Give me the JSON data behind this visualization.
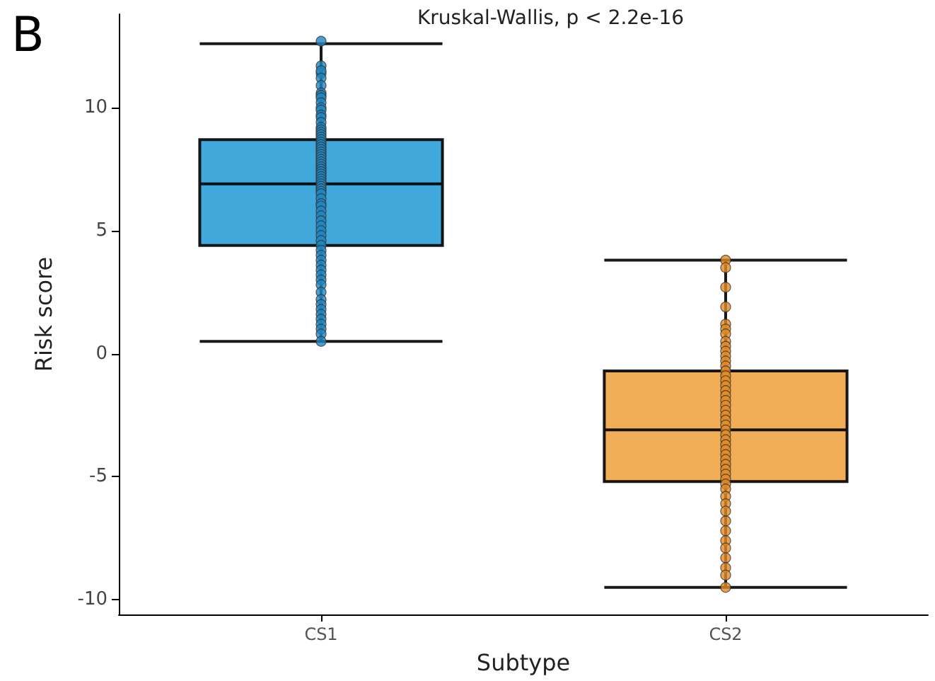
{
  "chart_data": {
    "type": "box",
    "xlabel": "Subtype",
    "ylabel": "Risk score",
    "annotations": [
      "B",
      "Kruskal-Wallis, p < 2.2e-16"
    ],
    "categories": [
      "CS1",
      "CS2"
    ],
    "ylim": [
      -10.6,
      13.8
    ],
    "yticks": [
      -10,
      -5,
      0,
      5,
      10
    ],
    "grid": false,
    "series": [
      {
        "colors": [
          "#2c9fd8",
          "#f0a545"
        ],
        "boxes": [
          {
            "low": 0.5,
            "q1": 4.4,
            "median": 6.9,
            "q3": 8.7,
            "high": 12.6
          },
          {
            "low": -9.5,
            "q1": -5.2,
            "median": -3.1,
            "q3": -0.7,
            "high": 3.8
          }
        ]
      },
      {
        "type": "scatter",
        "color": "#1f86c2",
        "x": [
          "CS1",
          "CS1",
          "CS1",
          "CS1",
          "CS1",
          "CS1",
          "CS1",
          "CS1",
          "CS1",
          "CS1",
          "CS1",
          "CS1",
          "CS1",
          "CS1",
          "CS1",
          "CS1",
          "CS1",
          "CS1",
          "CS1",
          "CS1",
          "CS1",
          "CS1",
          "CS1",
          "CS1",
          "CS1",
          "CS1",
          "CS1",
          "CS1",
          "CS1",
          "CS1",
          "CS1",
          "CS1",
          "CS1",
          "CS1",
          "CS1",
          "CS1",
          "CS1",
          "CS1",
          "CS1",
          "CS1",
          "CS1",
          "CS1",
          "CS1",
          "CS1",
          "CS1",
          "CS1",
          "CS1",
          "CS1",
          "CS1",
          "CS1",
          "CS1",
          "CS1",
          "CS1",
          "CS1",
          "CS1",
          "CS1",
          "CS1",
          "CS1",
          "CS1",
          "CS1",
          "CS1",
          "CS1",
          "CS1",
          "CS1",
          "CS1",
          "CS1",
          "CS1",
          "CS1",
          "CS1",
          "CS1",
          "CS1",
          "CS1"
        ],
        "values": [
          12.7,
          11.7,
          11.4,
          11.5,
          11.2,
          10.9,
          10.6,
          10.5,
          10.4,
          10.2,
          10.0,
          9.9,
          9.7,
          9.6,
          9.4,
          9.2,
          9.1,
          9.0,
          8.9,
          8.8,
          8.7,
          8.6,
          8.5,
          8.4,
          8.3,
          8.2,
          8.1,
          8.0,
          7.9,
          7.8,
          7.7,
          7.6,
          7.5,
          7.4,
          7.3,
          7.2,
          7.1,
          7.0,
          6.9,
          6.8,
          6.7,
          6.6,
          6.5,
          6.3,
          6.1,
          6.0,
          5.8,
          5.6,
          5.4,
          5.2,
          5.0,
          4.8,
          4.6,
          4.4,
          4.2,
          4.0,
          3.8,
          3.6,
          3.4,
          3.2,
          3.0,
          2.8,
          2.5,
          2.2,
          2.0,
          1.8,
          1.6,
          1.4,
          1.2,
          1.0,
          0.8,
          0.5
        ]
      },
      {
        "type": "scatter",
        "color": "#e38b25",
        "x": [
          "CS2",
          "CS2",
          "CS2",
          "CS2",
          "CS2",
          "CS2",
          "CS2",
          "CS2",
          "CS2",
          "CS2",
          "CS2",
          "CS2",
          "CS2",
          "CS2",
          "CS2",
          "CS2",
          "CS2",
          "CS2",
          "CS2",
          "CS2",
          "CS2",
          "CS2",
          "CS2",
          "CS2",
          "CS2",
          "CS2",
          "CS2",
          "CS2",
          "CS2",
          "CS2",
          "CS2",
          "CS2",
          "CS2",
          "CS2",
          "CS2",
          "CS2",
          "CS2",
          "CS2",
          "CS2",
          "CS2",
          "CS2",
          "CS2",
          "CS2",
          "CS2",
          "CS2",
          "CS2",
          "CS2",
          "CS2",
          "CS2"
        ],
        "values": [
          3.8,
          3.5,
          2.7,
          1.9,
          1.2,
          1.0,
          0.8,
          0.5,
          0.3,
          0.1,
          -0.1,
          -0.3,
          -0.5,
          -0.7,
          -0.9,
          -1.1,
          -1.3,
          -1.5,
          -1.7,
          -1.9,
          -2.1,
          -2.3,
          -2.5,
          -2.7,
          -2.9,
          -3.1,
          -3.3,
          -3.5,
          -3.7,
          -3.9,
          -4.1,
          -4.3,
          -4.5,
          -4.7,
          -4.9,
          -5.1,
          -5.3,
          -5.5,
          -5.8,
          -6.1,
          -6.4,
          -6.8,
          -7.2,
          -7.6,
          -7.9,
          -8.3,
          -8.7,
          -9.0,
          -9.5
        ]
      }
    ]
  }
}
